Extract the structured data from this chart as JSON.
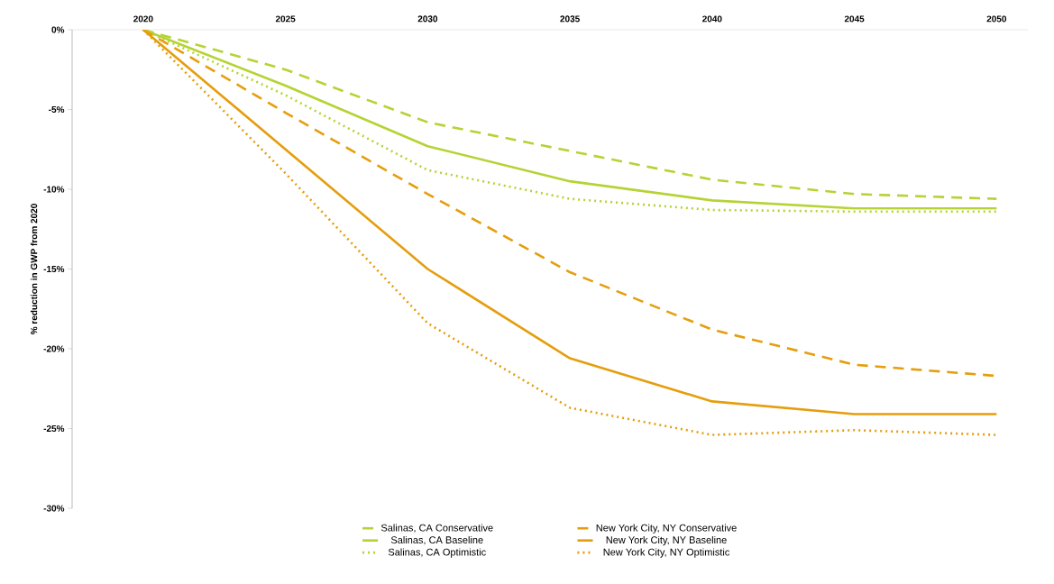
{
  "chart_data": {
    "type": "line",
    "ylabel": "% reduction in GWP from 2020",
    "x": [
      2020,
      2025,
      2030,
      2035,
      2040,
      2045,
      2050
    ],
    "xlim": [
      2017.5,
      2051.1
    ],
    "xticks": [
      2020,
      2025,
      2030,
      2035,
      2040,
      2045,
      2050
    ],
    "ylim": [
      -30,
      0
    ],
    "yticks": [
      {
        "value": 0,
        "label": "0%"
      },
      {
        "value": -5,
        "label": "-5%"
      },
      {
        "value": -10,
        "label": "-10%"
      },
      {
        "value": -15,
        "label": "-15%"
      },
      {
        "value": -20,
        "label": "-20%"
      },
      {
        "value": -25,
        "label": "-25%"
      },
      {
        "value": -30,
        "label": "-30%"
      }
    ],
    "legend": "bottom",
    "series": [
      {
        "name": "Salinas, CA Conservative",
        "color": "#b5d334",
        "line_style": "dashed",
        "values": [
          0,
          -2.5,
          -5.8,
          -7.6,
          -9.4,
          -10.3,
          -10.6
        ]
      },
      {
        "name": "Salinas, CA Baseline",
        "color": "#b5d334",
        "line_style": "solid",
        "values": [
          0,
          -3.5,
          -7.3,
          -9.5,
          -10.7,
          -11.2,
          -11.2
        ]
      },
      {
        "name": "Salinas, CA Optimistic",
        "color": "#b5d334",
        "line_style": "dotted",
        "values": [
          0,
          -4.1,
          -8.8,
          -10.6,
          -11.3,
          -11.4,
          -11.4
        ]
      },
      {
        "name": "New York City, NY Conservative",
        "color": "#e59e0d",
        "line_style": "dashed",
        "values": [
          0,
          -5.2,
          -10.3,
          -15.2,
          -18.8,
          -21.0,
          -21.7
        ]
      },
      {
        "name": "New York City, NY Baseline",
        "color": "#e59e0d",
        "line_style": "solid",
        "values": [
          0,
          -7.5,
          -15.0,
          -20.6,
          -23.3,
          -24.1,
          -24.1
        ]
      },
      {
        "name": "New York City, NY Optimistic",
        "color": "#e59e0d",
        "line_style": "dotted",
        "values": [
          0,
          -9.0,
          -18.4,
          -23.7,
          -25.4,
          -25.1,
          -25.4
        ]
      }
    ]
  }
}
